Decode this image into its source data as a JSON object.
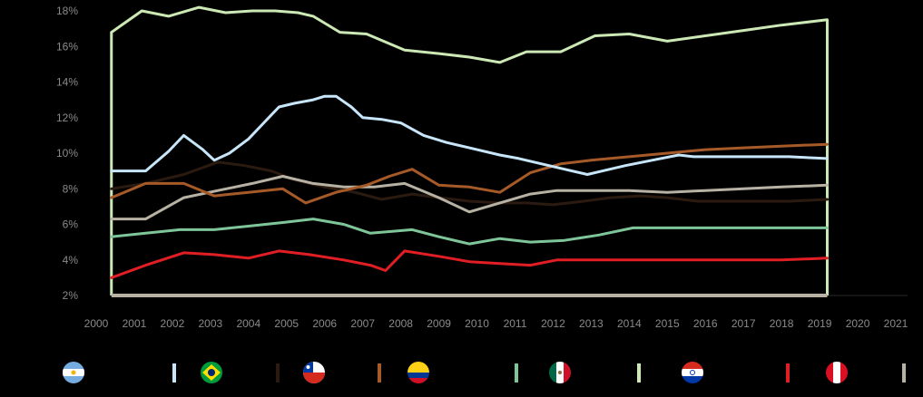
{
  "chart_data": {
    "type": "line",
    "title": "",
    "xlabel": "",
    "ylabel": "",
    "ylim": [
      2,
      18
    ],
    "xlim": [
      2000,
      2021
    ],
    "y_ticks": [
      "2%",
      "4%",
      "6%",
      "8%",
      "10%",
      "12%",
      "14%",
      "16%",
      "18%"
    ],
    "x_ticks": [
      "2000",
      "2001",
      "2002",
      "2003",
      "2004",
      "2005",
      "2006",
      "2007",
      "2008",
      "2009",
      "2010",
      "2011",
      "2012",
      "2013",
      "2014",
      "2015",
      "2016",
      "2017",
      "2018",
      "2019",
      "2020",
      "2021"
    ],
    "grid": false,
    "legend_position": "bottom",
    "series": [
      {
        "name": "Argentina",
        "color": "#c8e6fa",
        "flag": "argentina-flag-icon",
        "x": [
          2000.4,
          2001.3,
          2001.9,
          2002.3,
          2002.8,
          2003.1,
          2003.5,
          2004.0,
          2004.4,
          2004.8,
          2005.2,
          2005.7,
          2006.0,
          2006.3,
          2006.7,
          2007.0,
          2007.5,
          2008.0,
          2008.6,
          2009.2,
          2009.8,
          2010.6,
          2011.1,
          2011.7,
          2012.3,
          2012.9,
          2013.3,
          2013.9,
          2014.6,
          2015.3,
          2015.7,
          2016.5,
          2017.3,
          2018.2,
          2019.2
        ],
        "values": [
          9.0,
          9.0,
          10.1,
          11.0,
          10.2,
          9.6,
          10.0,
          10.8,
          11.7,
          12.6,
          12.8,
          13.0,
          13.2,
          13.2,
          12.6,
          12.0,
          11.9,
          11.7,
          11.0,
          10.6,
          10.3,
          9.9,
          9.7,
          9.4,
          9.1,
          8.8,
          9.0,
          9.3,
          9.6,
          9.9,
          9.8,
          9.8,
          9.8,
          9.8,
          9.7
        ]
      },
      {
        "name": "Brazil",
        "color": "#2b1a10",
        "flag": "brazil-flag-icon",
        "x": [
          2000.4,
          2001.3,
          2002.3,
          2003.2,
          2003.9,
          2004.6,
          2005.2,
          2006.0,
          2006.8,
          2007.5,
          2008.3,
          2009.0,
          2009.8,
          2010.6,
          2011.3,
          2012.0,
          2012.8,
          2013.5,
          2014.3,
          2015.0,
          2015.8,
          2016.5,
          2017.3,
          2018.2,
          2019.2
        ],
        "values": [
          8.0,
          8.3,
          8.8,
          9.5,
          9.3,
          9.0,
          8.5,
          8.1,
          7.8,
          7.4,
          7.7,
          7.5,
          7.3,
          7.2,
          7.2,
          7.1,
          7.3,
          7.5,
          7.6,
          7.5,
          7.3,
          7.3,
          7.3,
          7.3,
          7.4
        ]
      },
      {
        "name": "Chile",
        "color": "#a65a28",
        "flag": "chile-flag-icon",
        "x": [
          2000.4,
          2001.3,
          2002.3,
          2003.1,
          2004.0,
          2004.9,
          2005.5,
          2006.3,
          2007.1,
          2007.7,
          2008.3,
          2009.0,
          2009.8,
          2010.6,
          2011.4,
          2012.2,
          2013.0,
          2014.0,
          2015.0,
          2016.0,
          2017.0,
          2018.0,
          2019.2
        ],
        "values": [
          7.5,
          8.3,
          8.3,
          7.6,
          7.8,
          8.0,
          7.2,
          7.8,
          8.2,
          8.7,
          9.1,
          8.2,
          8.1,
          7.8,
          8.9,
          9.4,
          9.6,
          9.8,
          10.0,
          10.2,
          10.3,
          10.4,
          10.5
        ]
      },
      {
        "name": "Colombia",
        "color": "#7ec699",
        "flag": "colombia-flag-icon",
        "x": [
          2000.4,
          2001.3,
          2002.2,
          2003.1,
          2004.0,
          2004.9,
          2005.7,
          2006.5,
          2007.2,
          2008.3,
          2009.0,
          2009.8,
          2010.6,
          2011.4,
          2012.3,
          2013.2,
          2014.1,
          2015.0,
          2016.0,
          2017.0,
          2018.0,
          2019.2
        ],
        "values": [
          5.3,
          5.5,
          5.7,
          5.7,
          5.9,
          6.1,
          6.3,
          6.0,
          5.5,
          5.7,
          5.3,
          4.9,
          5.2,
          5.0,
          5.1,
          5.4,
          5.8,
          5.8,
          5.8,
          5.8,
          5.8,
          5.8
        ]
      },
      {
        "name": "Mexico",
        "color": "#cce8b5",
        "flag": "mexico-flag-icon",
        "x": [
          2000.4,
          2001.2,
          2001.9,
          2002.7,
          2003.4,
          2004.1,
          2004.7,
          2005.3,
          2005.7,
          2006.4,
          2007.1,
          2008.1,
          2009.0,
          2009.8,
          2010.6,
          2011.3,
          2012.2,
          2013.1,
          2014.0,
          2015.0,
          2016.0,
          2017.0,
          2018.0,
          2019.2
        ],
        "values": [
          16.8,
          18.0,
          17.7,
          18.2,
          17.9,
          18.0,
          18.0,
          17.9,
          17.7,
          16.8,
          16.7,
          15.8,
          15.6,
          15.4,
          15.1,
          15.7,
          15.7,
          16.6,
          16.7,
          16.3,
          16.6,
          16.9,
          17.2,
          17.5
        ]
      },
      {
        "name": "Paraguay",
        "color": "#e01e24",
        "flag": "paraguay-flag-icon",
        "x": [
          2000.4,
          2001.3,
          2002.3,
          2003.1,
          2004.0,
          2004.8,
          2005.6,
          2006.5,
          2007.2,
          2007.6,
          2008.1,
          2009.0,
          2009.8,
          2010.6,
          2011.4,
          2012.1,
          2013.0,
          2014.0,
          2015.0,
          2016.0,
          2017.0,
          2018.0,
          2019.2
        ],
        "values": [
          3.0,
          3.7,
          4.4,
          4.3,
          4.1,
          4.5,
          4.3,
          4.0,
          3.7,
          3.4,
          4.5,
          4.2,
          3.9,
          3.8,
          3.7,
          4.0,
          4.0,
          4.0,
          4.0,
          4.0,
          4.0,
          4.0,
          4.1
        ]
      },
      {
        "name": "Peru",
        "color": "#b8b2a4",
        "flag": "peru-flag-icon",
        "x": [
          2000.4,
          2001.3,
          2002.3,
          2003.2,
          2004.1,
          2004.9,
          2005.7,
          2006.5,
          2007.3,
          2008.1,
          2009.0,
          2009.8,
          2010.6,
          2011.4,
          2012.1,
          2013.0,
          2014.0,
          2015.0,
          2016.0,
          2017.0,
          2018.0,
          2019.2
        ],
        "values": [
          6.3,
          6.3,
          7.5,
          7.9,
          8.3,
          8.7,
          8.3,
          8.1,
          8.1,
          8.3,
          7.5,
          6.7,
          7.2,
          7.7,
          7.9,
          7.9,
          7.9,
          7.8,
          7.9,
          8.0,
          8.1,
          8.2
        ]
      }
    ],
    "baseline": {
      "name": "2% floor",
      "color": "#b8b2a4",
      "value": 2
    },
    "mexico_drop_color": "#cce8b5"
  }
}
